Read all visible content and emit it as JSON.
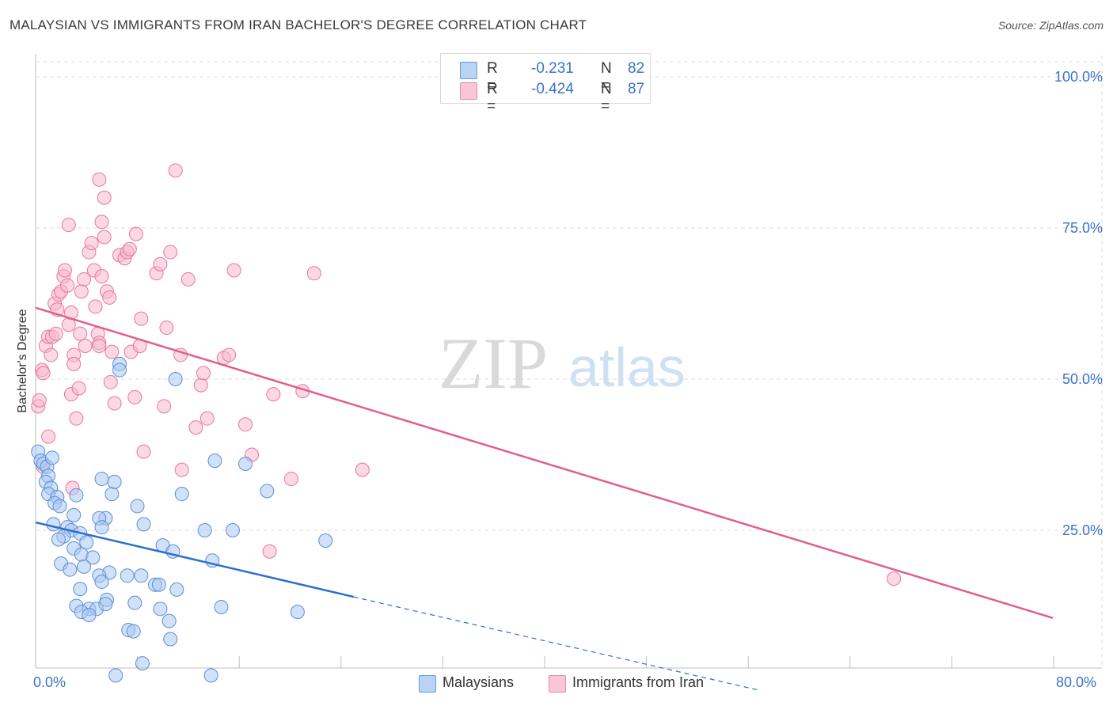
{
  "title": "MALAYSIAN VS IMMIGRANTS FROM IRAN BACHELOR'S DEGREE CORRELATION CHART",
  "source": "Source: ZipAtlas.com",
  "watermark": {
    "zip": "ZIP",
    "atlas": "atlas"
  },
  "legend": {
    "series": [
      {
        "r_label": "R =",
        "r_value": "-0.231",
        "n_label": "N =",
        "n_value": "82"
      },
      {
        "r_label": "R =",
        "r_value": "-0.424",
        "n_label": "N =",
        "n_value": "87"
      }
    ]
  },
  "bottom_legend": {
    "blue": "Malaysians",
    "pink": "Immigrants from Iran"
  },
  "colors": {
    "blue_fill": "#a9c9f2",
    "blue_stroke": "#5b8fd6",
    "blue_line": "#2b6fce",
    "pink_fill": "#f7b8cb",
    "pink_stroke": "#e8779c",
    "pink_line": "#e0608a",
    "tick_text": "#3a73c7",
    "grid": "#dcdcdc"
  },
  "chart_data": {
    "type": "scatter",
    "title": "MALAYSIAN VS IMMIGRANTS FROM IRAN BACHELOR'S DEGREE CORRELATION CHART",
    "xlabel": "",
    "ylabel": "Bachelor's Degree",
    "xlim": [
      0,
      80
    ],
    "ylim": [
      0,
      100
    ],
    "x_tick_labels": [
      "0.0%",
      "80.0%"
    ],
    "y_tick_labels": [
      "100.0%",
      "75.0%",
      "50.0%",
      "25.0%"
    ],
    "y_tick_values": [
      100,
      75,
      50,
      25
    ],
    "grid": true,
    "series": [
      {
        "name": "Malaysians",
        "color": "#a9c9f2",
        "trend": {
          "x0": 0,
          "y0": 26.3,
          "x1": 25,
          "y1": 14.0,
          "dashed_to_x": 57,
          "dashed_to_y": -1.5
        },
        "points": [
          [
            0.2,
            38.0
          ],
          [
            0.4,
            36.5
          ],
          [
            0.6,
            36.0
          ],
          [
            0.9,
            35.5
          ],
          [
            1.0,
            34.0
          ],
          [
            1.3,
            37.0
          ],
          [
            0.8,
            33.0
          ],
          [
            1.2,
            32.0
          ],
          [
            1.0,
            31.0
          ],
          [
            1.7,
            30.5
          ],
          [
            1.5,
            29.5
          ],
          [
            1.9,
            29.0
          ],
          [
            3.2,
            30.8
          ],
          [
            3.0,
            27.5
          ],
          [
            1.4,
            26.0
          ],
          [
            2.5,
            25.5
          ],
          [
            2.8,
            25.0
          ],
          [
            3.5,
            24.5
          ],
          [
            2.2,
            24.0
          ],
          [
            1.8,
            23.5
          ],
          [
            4.0,
            23.0
          ],
          [
            3.0,
            22.0
          ],
          [
            3.6,
            21.0
          ],
          [
            4.5,
            20.5
          ],
          [
            2.0,
            19.5
          ],
          [
            3.8,
            19.0
          ],
          [
            2.7,
            18.5
          ],
          [
            5.5,
            27.0
          ],
          [
            5.0,
            27.0
          ],
          [
            5.2,
            25.5
          ],
          [
            5.2,
            33.5
          ],
          [
            6.0,
            31.0
          ],
          [
            6.2,
            33.0
          ],
          [
            8.0,
            29.0
          ],
          [
            8.5,
            26.0
          ],
          [
            10.0,
            22.5
          ],
          [
            10.8,
            21.5
          ],
          [
            5.8,
            18.0
          ],
          [
            5.0,
            17.5
          ],
          [
            5.2,
            16.5
          ],
          [
            7.2,
            17.5
          ],
          [
            8.3,
            17.5
          ],
          [
            9.4,
            16.0
          ],
          [
            9.7,
            16.0
          ],
          [
            11.1,
            15.2
          ],
          [
            3.5,
            15.3
          ],
          [
            3.2,
            12.5
          ],
          [
            4.2,
            12.0
          ],
          [
            4.8,
            12.0
          ],
          [
            5.6,
            13.5
          ],
          [
            5.5,
            12.8
          ],
          [
            7.8,
            13.0
          ],
          [
            9.8,
            12.0
          ],
          [
            3.6,
            11.5
          ],
          [
            4.2,
            11.0
          ],
          [
            7.3,
            8.5
          ],
          [
            7.7,
            8.3
          ],
          [
            10.5,
            10.0
          ],
          [
            10.6,
            7.0
          ],
          [
            8.4,
            3.0
          ],
          [
            6.3,
            1.0
          ],
          [
            13.8,
            1.0
          ],
          [
            13.9,
            20.0
          ],
          [
            13.3,
            25.0
          ],
          [
            15.5,
            25.0
          ],
          [
            11.5,
            31.0
          ],
          [
            14.1,
            36.5
          ],
          [
            16.5,
            36.0
          ],
          [
            18.2,
            31.5
          ],
          [
            22.8,
            23.3
          ],
          [
            20.6,
            11.5
          ],
          [
            14.6,
            12.3
          ],
          [
            11.0,
            50.0
          ],
          [
            6.6,
            52.5
          ],
          [
            6.6,
            51.5
          ]
        ]
      },
      {
        "name": "Immigrants from Iran",
        "color": "#f7b8cb",
        "trend": {
          "x0": 0,
          "y0": 61.8,
          "x1": 80,
          "y1": 10.5
        },
        "points": [
          [
            0.2,
            45.5
          ],
          [
            0.3,
            46.5
          ],
          [
            0.5,
            51.5
          ],
          [
            0.6,
            51.0
          ],
          [
            0.8,
            55.5
          ],
          [
            1.0,
            57.0
          ],
          [
            1.2,
            54.0
          ],
          [
            1.3,
            57.0
          ],
          [
            1.6,
            57.5
          ],
          [
            1.5,
            62.5
          ],
          [
            1.7,
            61.5
          ],
          [
            1.8,
            64.0
          ],
          [
            2.0,
            64.5
          ],
          [
            2.2,
            67.0
          ],
          [
            2.3,
            68.0
          ],
          [
            2.5,
            65.5
          ],
          [
            2.6,
            59.0
          ],
          [
            2.8,
            61.0
          ],
          [
            3.0,
            54.0
          ],
          [
            3.0,
            52.5
          ],
          [
            2.8,
            47.5
          ],
          [
            3.2,
            43.5
          ],
          [
            3.4,
            48.5
          ],
          [
            3.5,
            57.5
          ],
          [
            3.6,
            64.5
          ],
          [
            3.8,
            66.5
          ],
          [
            3.9,
            55.5
          ],
          [
            4.2,
            71.0
          ],
          [
            4.4,
            72.5
          ],
          [
            4.6,
            68.0
          ],
          [
            4.7,
            62.0
          ],
          [
            4.9,
            57.5
          ],
          [
            5.0,
            56.0
          ],
          [
            5.2,
            67.0
          ],
          [
            5.4,
            73.5
          ],
          [
            5.6,
            64.5
          ],
          [
            5.8,
            63.5
          ],
          [
            5.2,
            76.0
          ],
          [
            5.0,
            55.5
          ],
          [
            5.9,
            49.5
          ],
          [
            6.0,
            54.5
          ],
          [
            6.2,
            46.0
          ],
          [
            2.6,
            75.5
          ],
          [
            5.0,
            83.0
          ],
          [
            5.4,
            80.0
          ],
          [
            6.6,
            70.5
          ],
          [
            7.0,
            70.0
          ],
          [
            7.2,
            71.0
          ],
          [
            7.4,
            71.5
          ],
          [
            7.5,
            54.5
          ],
          [
            7.8,
            47.0
          ],
          [
            7.9,
            74.0
          ],
          [
            8.2,
            55.5
          ],
          [
            8.3,
            60.0
          ],
          [
            8.5,
            38.0
          ],
          [
            9.5,
            67.5
          ],
          [
            9.8,
            69.0
          ],
          [
            10.1,
            45.5
          ],
          [
            10.3,
            58.5
          ],
          [
            10.6,
            71.0
          ],
          [
            11.0,
            84.5
          ],
          [
            11.4,
            54.0
          ],
          [
            11.5,
            35.0
          ],
          [
            12.0,
            66.5
          ],
          [
            12.6,
            42.0
          ],
          [
            13.0,
            49.0
          ],
          [
            13.2,
            51.0
          ],
          [
            13.5,
            43.5
          ],
          [
            14.8,
            53.5
          ],
          [
            15.2,
            54.0
          ],
          [
            15.6,
            68.0
          ],
          [
            16.5,
            42.5
          ],
          [
            17.0,
            37.5
          ],
          [
            18.7,
            47.5
          ],
          [
            20.1,
            33.5
          ],
          [
            21.0,
            48.0
          ],
          [
            21.9,
            67.5
          ],
          [
            25.7,
            35.0
          ],
          [
            18.4,
            21.5
          ],
          [
            67.5,
            17.0
          ],
          [
            1.0,
            40.5
          ],
          [
            0.6,
            35.5
          ],
          [
            2.9,
            32.0
          ]
        ]
      }
    ]
  }
}
